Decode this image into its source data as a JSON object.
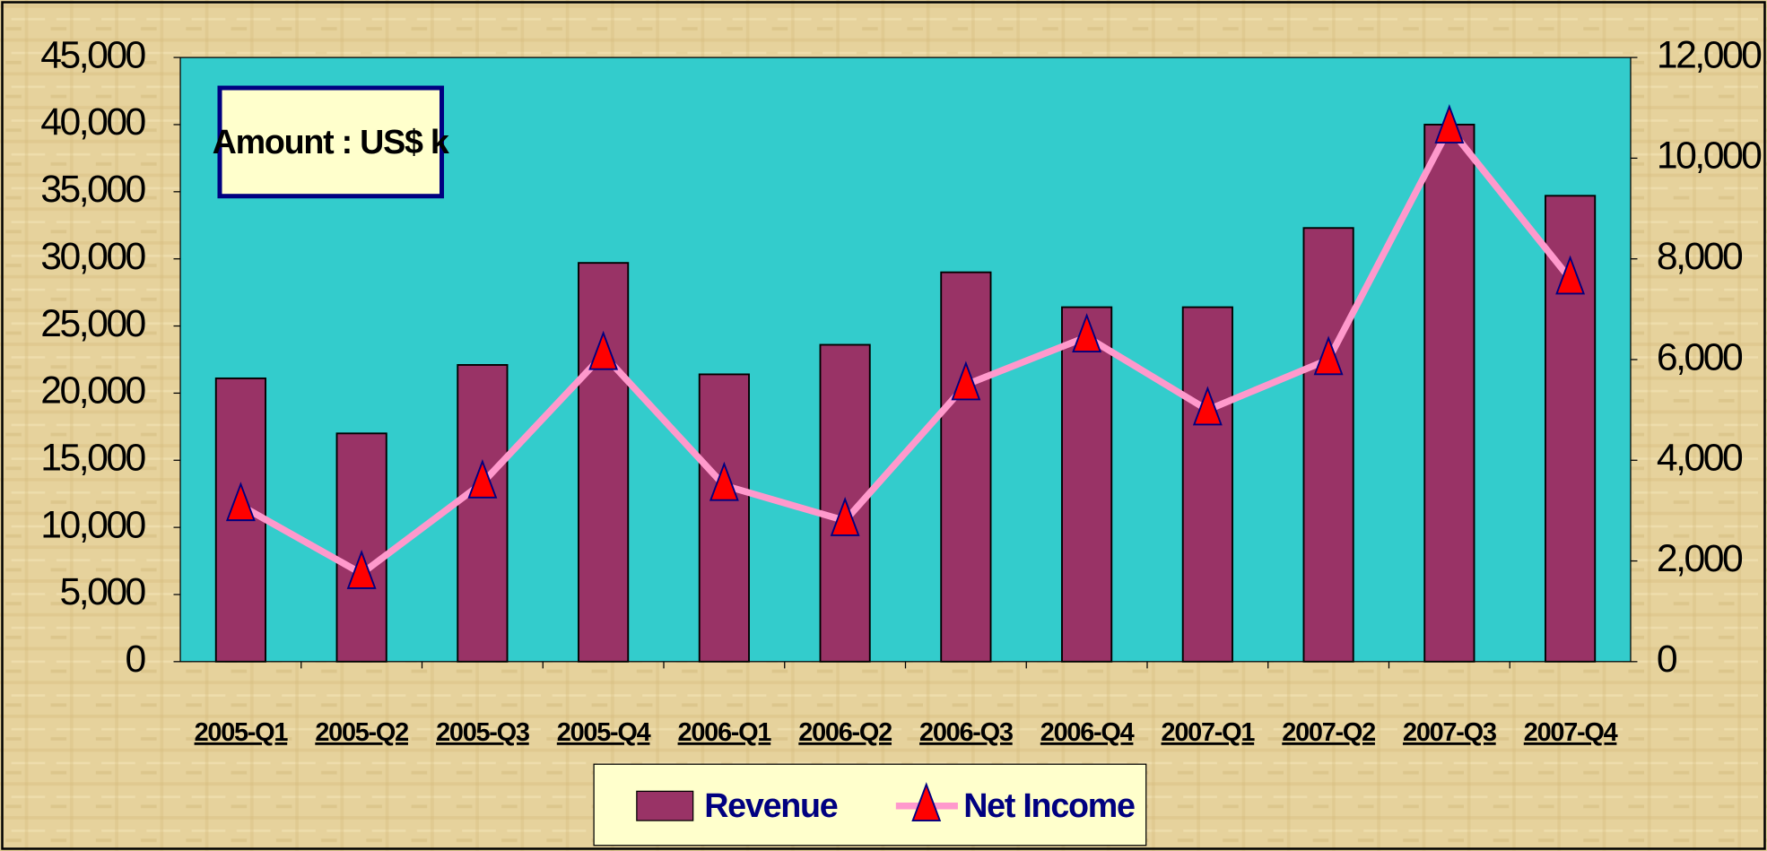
{
  "chart_data": {
    "type": "bar",
    "annotation": "Amount : US$ k",
    "categories": [
      "2005-Q1",
      "2005-Q2",
      "2005-Q3",
      "2005-Q4",
      "2006-Q1",
      "2006-Q2",
      "2006-Q3",
      "2006-Q4",
      "2007-Q1",
      "2007-Q2",
      "2007-Q3",
      "2007-Q4"
    ],
    "series": [
      {
        "name": "Revenue",
        "type": "bar",
        "color": "#993366",
        "values": [
          21100,
          17000,
          22100,
          29700,
          21400,
          23600,
          29000,
          26400,
          26400,
          32300,
          40000,
          34700
        ]
      },
      {
        "name": "Net Income",
        "type": "line",
        "axis": "y2",
        "color": "#ff99cc",
        "marker_color": "#ff0000",
        "values": [
          3100,
          1750,
          3550,
          6100,
          3500,
          2800,
          5500,
          6450,
          5000,
          6000,
          10600,
          7600
        ]
      }
    ],
    "ylim": [
      0,
      45000
    ],
    "yticks": [
      0,
      {
        "value": 5000,
        "label": "5,000"
      },
      {
        "value": 10000,
        "label": "10,000"
      },
      {
        "value": 15000,
        "label": "15,000"
      },
      {
        "value": 20000,
        "label": "20,000"
      },
      {
        "value": 25000,
        "label": "25,000"
      },
      {
        "value": 30000,
        "label": "30,000"
      },
      {
        "value": 35000,
        "label": "35,000"
      },
      {
        "value": 40000,
        "label": "40,000"
      },
      {
        "value": 45000,
        "label": "45,000"
      }
    ],
    "y2lim": [
      0,
      12000
    ],
    "y2ticks": [
      0,
      {
        "value": 2000,
        "label": "2,000"
      },
      {
        "value": 4000,
        "label": "4,000"
      },
      {
        "value": 6000,
        "label": "6,000"
      },
      {
        "value": 8000,
        "label": "8,000"
      },
      {
        "value": 10000,
        "label": "10,000"
      },
      {
        "value": 12000,
        "label": "12,000"
      }
    ],
    "plot_background": "#33cccc",
    "legend": "bottom"
  }
}
